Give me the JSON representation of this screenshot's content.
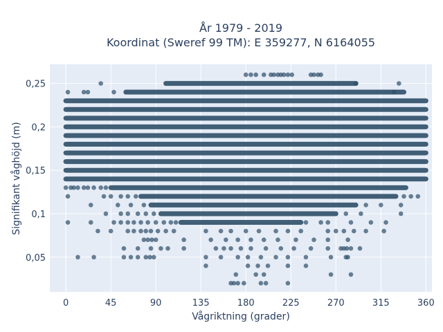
{
  "chart_data": {
    "type": "scatter",
    "title_line1": "År 1979 - 2019",
    "title_line2": "Koordinat (Sweref 99 TM): E 359277, N 6164055",
    "xlabel": "Vågriktning (grader)",
    "ylabel": "Signifikant våghöjd (m)",
    "xlim": [
      -16,
      366
    ],
    "ylim": [
      0.01,
      0.272
    ],
    "xticks": [
      0,
      45,
      90,
      135,
      180,
      225,
      270,
      315,
      360
    ],
    "xtick_labels": [
      "0",
      "45",
      "90",
      "135",
      "180",
      "225",
      "270",
      "315",
      "360"
    ],
    "yticks": [
      0.05,
      0.1,
      0.15,
      0.2,
      0.25
    ],
    "ytick_labels": [
      "0,05",
      "0,1",
      "0,15",
      "0,2",
      "0,25"
    ],
    "grid": true,
    "marker_color": "#2f4f69",
    "dense_bands": [
      {
        "y": 0.23,
        "x_range": [
          0,
          360
        ]
      },
      {
        "y": 0.22,
        "x_range": [
          0,
          360
        ]
      },
      {
        "y": 0.21,
        "x_range": [
          0,
          360
        ]
      },
      {
        "y": 0.2,
        "x_range": [
          0,
          360
        ]
      },
      {
        "y": 0.19,
        "x_range": [
          0,
          360
        ]
      },
      {
        "y": 0.18,
        "x_range": [
          0,
          360
        ]
      },
      {
        "y": 0.17,
        "x_range": [
          0,
          360
        ]
      },
      {
        "y": 0.16,
        "x_range": [
          0,
          360
        ]
      },
      {
        "y": 0.15,
        "x_range": [
          0,
          360
        ]
      },
      {
        "y": 0.14,
        "x_range": [
          0,
          360
        ]
      },
      {
        "y": 0.24,
        "x_range": [
          60,
          338
        ]
      },
      {
        "y": 0.25,
        "x_range": [
          100,
          290
        ]
      },
      {
        "y": 0.13,
        "x_range": [
          45,
          340
        ]
      },
      {
        "y": 0.12,
        "x_range": [
          75,
          330
        ]
      },
      {
        "y": 0.11,
        "x_range": [
          85,
          290
        ]
      },
      {
        "y": 0.1,
        "x_range": [
          95,
          270
        ]
      },
      {
        "y": 0.09,
        "x_range": [
          115,
          235
        ]
      }
    ],
    "points": [
      [
        2,
        0.24
      ],
      [
        18,
        0.24
      ],
      [
        22,
        0.24
      ],
      [
        35,
        0.25
      ],
      [
        48,
        0.24
      ],
      [
        290,
        0.25
      ],
      [
        328,
        0.24
      ],
      [
        333,
        0.25
      ],
      [
        0,
        0.13
      ],
      [
        5,
        0.13
      ],
      [
        8,
        0.13
      ],
      [
        12,
        0.13
      ],
      [
        18,
        0.13
      ],
      [
        22,
        0.13
      ],
      [
        28,
        0.13
      ],
      [
        35,
        0.13
      ],
      [
        40,
        0.13
      ],
      [
        2,
        0.12
      ],
      [
        38,
        0.12
      ],
      [
        45,
        0.12
      ],
      [
        55,
        0.12
      ],
      [
        62,
        0.12
      ],
      [
        70,
        0.12
      ],
      [
        338,
        0.12
      ],
      [
        345,
        0.12
      ],
      [
        352,
        0.12
      ],
      [
        25,
        0.11
      ],
      [
        52,
        0.11
      ],
      [
        65,
        0.11
      ],
      [
        78,
        0.11
      ],
      [
        300,
        0.11
      ],
      [
        315,
        0.11
      ],
      [
        335,
        0.11
      ],
      [
        40,
        0.1
      ],
      [
        55,
        0.1
      ],
      [
        62,
        0.1
      ],
      [
        72,
        0.1
      ],
      [
        80,
        0.1
      ],
      [
        88,
        0.1
      ],
      [
        280,
        0.1
      ],
      [
        295,
        0.1
      ],
      [
        335,
        0.1
      ],
      [
        2,
        0.09
      ],
      [
        25,
        0.09
      ],
      [
        48,
        0.09
      ],
      [
        55,
        0.09
      ],
      [
        62,
        0.09
      ],
      [
        68,
        0.09
      ],
      [
        75,
        0.09
      ],
      [
        82,
        0.09
      ],
      [
        90,
        0.09
      ],
      [
        98,
        0.09
      ],
      [
        105,
        0.09
      ],
      [
        110,
        0.09
      ],
      [
        240,
        0.09
      ],
      [
        255,
        0.09
      ],
      [
        262,
        0.09
      ],
      [
        285,
        0.09
      ],
      [
        305,
        0.09
      ],
      [
        320,
        0.09
      ],
      [
        32,
        0.08
      ],
      [
        45,
        0.08
      ],
      [
        62,
        0.08
      ],
      [
        68,
        0.08
      ],
      [
        75,
        0.08
      ],
      [
        80,
        0.08
      ],
      [
        85,
        0.08
      ],
      [
        92,
        0.08
      ],
      [
        100,
        0.08
      ],
      [
        108,
        0.08
      ],
      [
        140,
        0.08
      ],
      [
        155,
        0.08
      ],
      [
        165,
        0.08
      ],
      [
        180,
        0.08
      ],
      [
        193,
        0.08
      ],
      [
        210,
        0.08
      ],
      [
        222,
        0.08
      ],
      [
        235,
        0.08
      ],
      [
        262,
        0.08
      ],
      [
        270,
        0.08
      ],
      [
        278,
        0.08
      ],
      [
        288,
        0.08
      ],
      [
        300,
        0.08
      ],
      [
        318,
        0.08
      ],
      [
        78,
        0.07
      ],
      [
        82,
        0.07
      ],
      [
        86,
        0.07
      ],
      [
        90,
        0.07
      ],
      [
        118,
        0.07
      ],
      [
        145,
        0.07
      ],
      [
        160,
        0.07
      ],
      [
        172,
        0.07
      ],
      [
        185,
        0.07
      ],
      [
        198,
        0.07
      ],
      [
        212,
        0.07
      ],
      [
        230,
        0.07
      ],
      [
        248,
        0.07
      ],
      [
        262,
        0.07
      ],
      [
        282,
        0.07
      ],
      [
        58,
        0.06
      ],
      [
        72,
        0.06
      ],
      [
        85,
        0.06
      ],
      [
        95,
        0.06
      ],
      [
        102,
        0.06
      ],
      [
        118,
        0.06
      ],
      [
        150,
        0.06
      ],
      [
        158,
        0.06
      ],
      [
        165,
        0.06
      ],
      [
        175,
        0.06
      ],
      [
        185,
        0.06
      ],
      [
        200,
        0.06
      ],
      [
        215,
        0.06
      ],
      [
        228,
        0.06
      ],
      [
        245,
        0.06
      ],
      [
        262,
        0.06
      ],
      [
        275,
        0.06
      ],
      [
        278,
        0.06
      ],
      [
        281,
        0.06
      ],
      [
        285,
        0.06
      ],
      [
        294,
        0.06
      ],
      [
        12,
        0.05
      ],
      [
        28,
        0.05
      ],
      [
        58,
        0.05
      ],
      [
        65,
        0.05
      ],
      [
        72,
        0.05
      ],
      [
        80,
        0.05
      ],
      [
        84,
        0.05
      ],
      [
        88,
        0.05
      ],
      [
        140,
        0.05
      ],
      [
        155,
        0.05
      ],
      [
        172,
        0.05
      ],
      [
        182,
        0.05
      ],
      [
        195,
        0.05
      ],
      [
        210,
        0.05
      ],
      [
        222,
        0.05
      ],
      [
        240,
        0.05
      ],
      [
        265,
        0.05
      ],
      [
        280,
        0.05
      ],
      [
        282,
        0.05
      ],
      [
        140,
        0.04
      ],
      [
        182,
        0.04
      ],
      [
        192,
        0.04
      ],
      [
        202,
        0.04
      ],
      [
        222,
        0.04
      ],
      [
        240,
        0.04
      ],
      [
        170,
        0.03
      ],
      [
        190,
        0.03
      ],
      [
        198,
        0.03
      ],
      [
        265,
        0.03
      ],
      [
        285,
        0.03
      ],
      [
        165,
        0.02
      ],
      [
        168,
        0.02
      ],
      [
        172,
        0.02
      ],
      [
        178,
        0.02
      ],
      [
        195,
        0.02
      ],
      [
        200,
        0.02
      ],
      [
        222,
        0.02
      ],
      [
        180,
        0.26
      ],
      [
        185,
        0.26
      ],
      [
        190,
        0.26
      ],
      [
        198,
        0.26
      ],
      [
        205,
        0.26
      ],
      [
        208,
        0.26
      ],
      [
        212,
        0.26
      ],
      [
        215,
        0.26
      ],
      [
        218,
        0.26
      ],
      [
        222,
        0.26
      ],
      [
        226,
        0.26
      ],
      [
        245,
        0.26
      ],
      [
        248,
        0.26
      ],
      [
        252,
        0.26
      ],
      [
        255,
        0.26
      ]
    ]
  }
}
